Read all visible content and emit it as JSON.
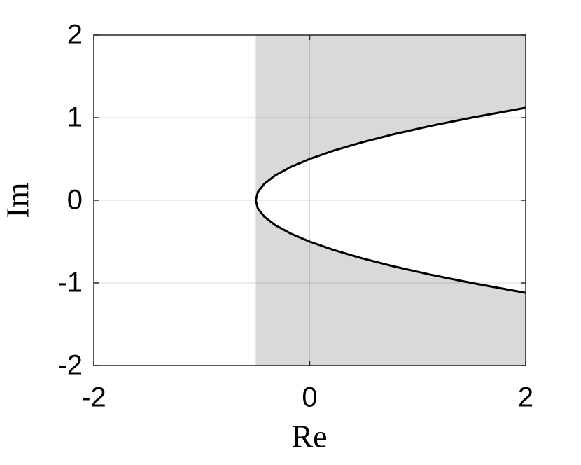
{
  "chart_data": {
    "type": "line",
    "x_label": "Re",
    "y_label": "Im",
    "x": [
      2,
      1.5,
      1.12,
      0.78,
      0.48,
      0.22,
      0,
      -0.18,
      -0.32,
      -0.42,
      -0.48,
      -0.5,
      -0.48,
      -0.42,
      -0.32,
      -0.18,
      0,
      0.22,
      0.48,
      0.78,
      1.12,
      1.5,
      2
    ],
    "y": [
      -1.12,
      -1,
      -0.9,
      -0.8,
      -0.7,
      -0.6,
      -0.5,
      -0.4,
      -0.3,
      -0.2,
      -0.1,
      0,
      0.1,
      0.2,
      0.3,
      0.4,
      0.5,
      0.6,
      0.7,
      0.8,
      0.9,
      1,
      1.12
    ],
    "color": "#000000",
    "shaded_region": {
      "xlim": [
        -0.5,
        2
      ],
      "color": "#d9d9d9"
    },
    "xlim": [
      -2,
      2
    ],
    "ylim": [
      -2,
      2
    ],
    "xticks": [
      -2,
      0,
      2
    ],
    "yticks": [
      -2,
      -1,
      0,
      1,
      2
    ],
    "grid": true
  }
}
